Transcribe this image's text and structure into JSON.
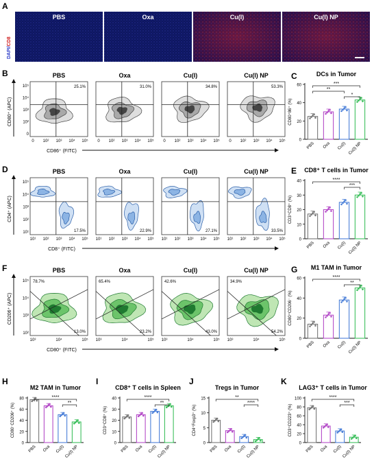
{
  "panels": {
    "A": {
      "label": "A",
      "side_label_blue": "DAPI/",
      "side_label_red": "CD8",
      "groups": [
        "PBS",
        "Oxa",
        "Cu(I)",
        "Cu(I) NP"
      ]
    },
    "B": {
      "label": "B",
      "groups": [
        "PBS",
        "Oxa",
        "Cu(I)",
        "Cu(I) NP"
      ],
      "percents": [
        "25.1%",
        "31.0%",
        "34.8%",
        "53.3%"
      ],
      "ylabel": "CD80⁺ (APC)",
      "xlabel": "CD86⁺ (FITC)",
      "yticks": [
        "10⁵",
        "10⁴",
        "10³",
        "10²",
        "0"
      ],
      "xticks": [
        "0",
        "10²",
        "10³",
        "10⁴",
        "10⁵"
      ]
    },
    "D": {
      "label": "D",
      "groups": [
        "PBS",
        "Oxa",
        "Cu(I)",
        "Cu(I) NP"
      ],
      "percents": [
        "17.5%",
        "22.9%",
        "27.1%",
        "33.5%"
      ],
      "ylabel": "CD4⁺ (APC)",
      "xlabel": "CD8⁺ (FITC)",
      "yticks": [
        "10⁵",
        "10⁴",
        "10³",
        "10²",
        "10¹"
      ],
      "xticks": [
        "10¹",
        "10²",
        "10³",
        "10⁴",
        "10⁵"
      ]
    },
    "F": {
      "label": "F",
      "groups": [
        "PBS",
        "Oxa",
        "Cu(I)",
        "Cu(I) NP"
      ],
      "percents_top": [
        "78.7%",
        "65.4%",
        "42.6%",
        "34.9%"
      ],
      "percents_bottom": [
        "13.0%",
        "23.2%",
        "43.0%",
        "54.2%"
      ],
      "ylabel": "CD206⁺ (APC)",
      "xlabel": "CD80⁺ (FITC)",
      "yticks": [
        "10⁵",
        "10⁴",
        "10³",
        "10²"
      ],
      "xticks": [
        "10³",
        "10⁴",
        "10⁵"
      ]
    }
  },
  "chart_data": [
    {
      "id": "C",
      "type": "bar",
      "title": "DCs in Tumor",
      "ylabel": "CD80⁺86⁺ (%)",
      "categories": [
        "PBS",
        "Oxa",
        "Cu(I)",
        "Cu(I) NP"
      ],
      "values": [
        25,
        30,
        33,
        43
      ],
      "ylim": [
        0,
        60
      ],
      "yticks": [
        0,
        20,
        40,
        60
      ],
      "colors": [
        "#777777",
        "#b44bc8",
        "#4a7fd8",
        "#3cbf5c"
      ],
      "significance": [
        "***",
        "**",
        "*"
      ]
    },
    {
      "id": "E",
      "type": "bar",
      "title": "CD8⁺ T cells in Tumor",
      "ylabel": "CD3⁺CD8⁺ (%)",
      "categories": [
        "PBS",
        "Oxa",
        "Cu(I)",
        "Cu(I) NP"
      ],
      "values": [
        17,
        20,
        25,
        30
      ],
      "ylim": [
        0,
        40
      ],
      "yticks": [
        0,
        10,
        20,
        30,
        40
      ],
      "colors": [
        "#777777",
        "#b44bc8",
        "#4a7fd8",
        "#3cbf5c"
      ],
      "significance": [
        "****",
        "***"
      ]
    },
    {
      "id": "G",
      "type": "bar",
      "title": "M1 TAM in Tumor",
      "ylabel": "CD80⁺CD206⁻ (%)",
      "categories": [
        "PBS",
        "Oxa",
        "Cu(I)",
        "Cu(I) NP"
      ],
      "values": [
        14,
        23,
        38,
        50
      ],
      "ylim": [
        0,
        60
      ],
      "yticks": [
        0,
        20,
        40,
        60
      ],
      "colors": [
        "#777777",
        "#b44bc8",
        "#4a7fd8",
        "#3cbf5c"
      ],
      "significance": [
        "****",
        "**"
      ]
    },
    {
      "id": "H",
      "type": "bar",
      "title": "M2 TAM in Tumor",
      "ylabel": "CD80⁻CD206⁺ (%)",
      "categories": [
        "PBS",
        "Oxa",
        "Cu(I)",
        "Cu(I) NP"
      ],
      "values": [
        77,
        66,
        50,
        37
      ],
      "ylim": [
        0,
        80
      ],
      "yticks": [
        0,
        20,
        40,
        60,
        80
      ],
      "colors": [
        "#777777",
        "#b44bc8",
        "#4a7fd8",
        "#3cbf5c"
      ],
      "significance": [
        "****",
        "**"
      ]
    },
    {
      "id": "I",
      "type": "bar",
      "title": "CD8⁺ T cells in Spleen",
      "ylabel": "CD3⁺CD8⁺ (%)",
      "categories": [
        "PBS",
        "Oxa",
        "Cu(I)",
        "Cu(I) NP"
      ],
      "values": [
        23,
        25,
        28,
        33
      ],
      "ylim": [
        0,
        40
      ],
      "yticks": [
        0,
        10,
        20,
        30,
        40
      ],
      "colors": [
        "#777777",
        "#b44bc8",
        "#4a7fd8",
        "#3cbf5c"
      ],
      "significance": [
        "****",
        "**"
      ]
    },
    {
      "id": "J",
      "type": "bar",
      "title": "Tregs in Tumor",
      "ylabel": "CD4⁺Foxp3⁺ (%)",
      "categories": [
        "PBS",
        "Oxa",
        "Cu(I)",
        "Cu(I) NP"
      ],
      "values": [
        7.5,
        4,
        2,
        1
      ],
      "ylim": [
        0,
        15
      ],
      "yticks": [
        0,
        5,
        10,
        15
      ],
      "colors": [
        "#777777",
        "#b44bc8",
        "#4a7fd8",
        "#3cbf5c"
      ],
      "significance": [
        "**",
        "****"
      ]
    },
    {
      "id": "K",
      "type": "bar",
      "title": "LAG3⁺ T cells in Tumor",
      "ylabel": "CD3⁺CD223⁺ (%)",
      "categories": [
        "PBS",
        "Oxa",
        "Cu(I)",
        "Cu(I) NP"
      ],
      "values": [
        78,
        37,
        26,
        12
      ],
      "ylim": [
        0,
        100
      ],
      "yticks": [
        0,
        20,
        40,
        60,
        80,
        100
      ],
      "colors": [
        "#777777",
        "#b44bc8",
        "#4a7fd8",
        "#3cbf5c"
      ],
      "significance": [
        "****",
        "***"
      ]
    }
  ]
}
